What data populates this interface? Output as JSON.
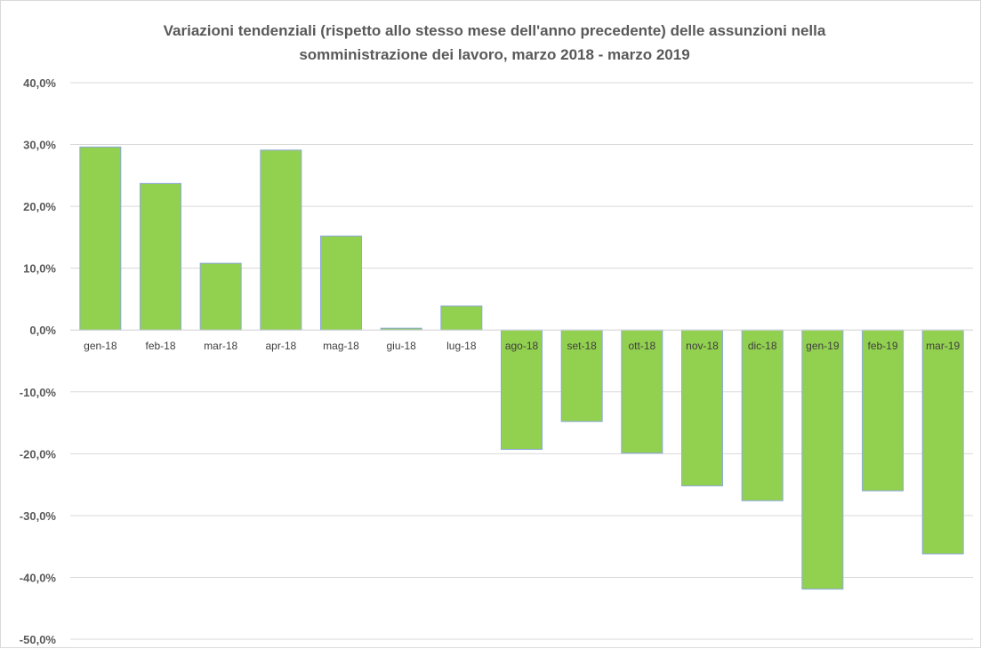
{
  "chart_data": {
    "type": "bar",
    "title": "Variazioni tendenziali (rispetto allo stesso mese dell'anno precedente) delle assunzioni nella\nsomministrazione dei lavoro, marzo 2018 - marzo 2019",
    "xlabel": "",
    "ylabel": "",
    "categories": [
      "gen-18",
      "feb-18",
      "mar-18",
      "apr-18",
      "mag-18",
      "giu-18",
      "lug-18",
      "ago-18",
      "set-18",
      "ott-18",
      "nov-18",
      "dic-18",
      "gen-19",
      "feb-19",
      "mar-19"
    ],
    "values": [
      29.6,
      23.7,
      10.8,
      29.1,
      15.2,
      0.3,
      3.9,
      -19.3,
      -14.8,
      -19.9,
      -25.2,
      -27.6,
      -41.9,
      -26.0,
      -36.2
    ],
    "ylim": [
      -50,
      40
    ],
    "yticks": [
      "40,0%",
      "30,0%",
      "20,0%",
      "10,0%",
      "0,0%",
      "-10,0%",
      "-20,0%",
      "-30,0%",
      "-40,0%",
      "-50,0%"
    ],
    "grid": true,
    "legend": "none",
    "colors": {
      "bar_fill": "#92D050",
      "bar_stroke": "#8EA9DB",
      "grid": "#D9D9D9"
    }
  }
}
